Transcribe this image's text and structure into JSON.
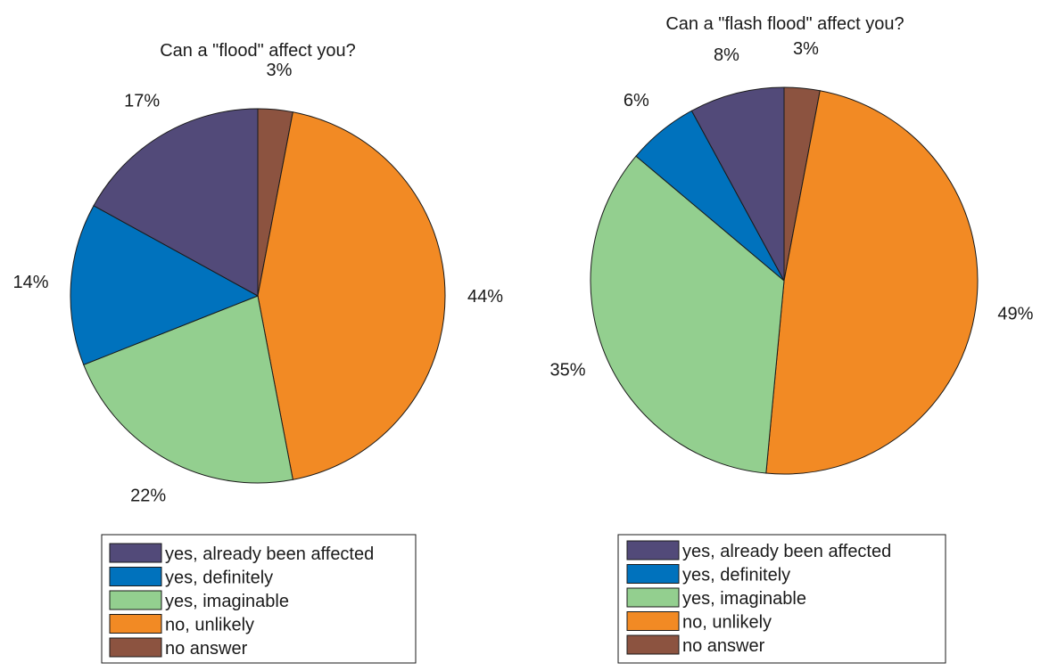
{
  "chart_data": [
    {
      "type": "pie",
      "title": "Can a \"flood\" affect you?",
      "categories": [
        "no answer",
        "no, unlikely",
        "yes, imaginable",
        "yes, definitely",
        "yes, already been affected"
      ],
      "values": [
        3,
        44,
        22,
        14,
        17
      ],
      "labels": [
        "3%",
        "44%",
        "22%",
        "14%",
        "17%"
      ],
      "legend": [
        "yes, already been affected",
        "yes, definitely",
        "yes, imaginable",
        "no, unlikely",
        "no answer"
      ],
      "legend_placement": "bottom"
    },
    {
      "type": "pie",
      "title": "Can a \"flash flood\" affect you?",
      "categories": [
        "no answer",
        "no, unlikely",
        "yes, imaginable",
        "yes, definitely",
        "yes, already been affected"
      ],
      "values": [
        3,
        49,
        35,
        6,
        8
      ],
      "labels": [
        "3%",
        "49%",
        "35%",
        "6%",
        "8%"
      ],
      "legend": [
        "yes, already been affected",
        "yes, definitely",
        "yes, imaginable",
        "no, unlikely",
        "no answer"
      ],
      "legend_placement": "bottom"
    }
  ],
  "colors": {
    "yes, already been affected": "#524a79",
    "yes, definitely": "#0072bd",
    "yes, imaginable": "#93cf8f",
    "no, unlikely": "#f28a24",
    "no answer": "#8c5340"
  }
}
